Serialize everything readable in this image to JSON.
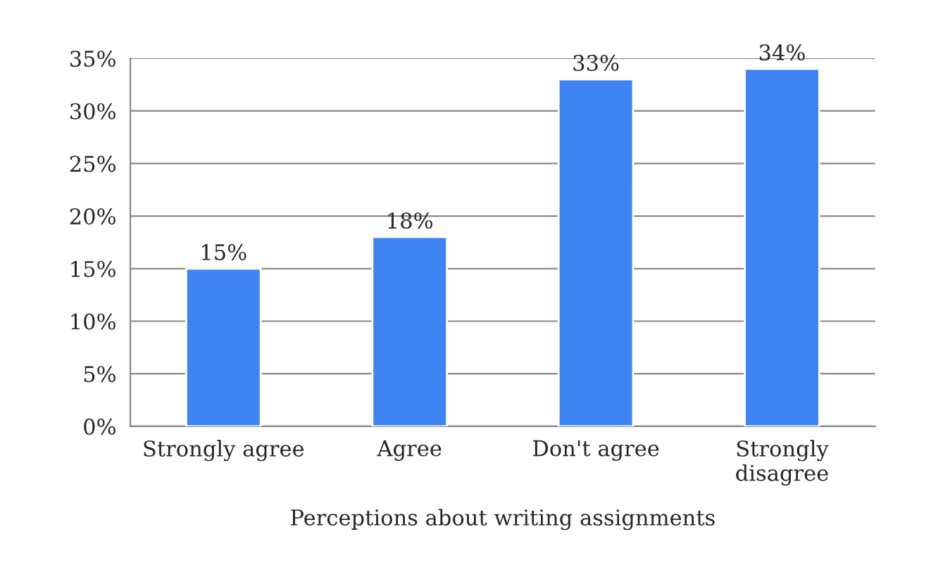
{
  "chart_data": {
    "type": "bar",
    "xlabel": "Perceptions about writing assignments",
    "categories": [
      "Strongly agree",
      "Agree",
      "Don't agree",
      "Strongly disagree"
    ],
    "values": [
      15,
      18,
      33,
      34
    ],
    "value_labels": [
      "15%",
      "18%",
      "33%",
      "34%"
    ],
    "color": "#3f84f2",
    "ylim": [
      0,
      35
    ],
    "yticks": [
      {
        "value": 0,
        "label": "0%"
      },
      {
        "value": 5,
        "label": "5%"
      },
      {
        "value": 10,
        "label": "10%"
      },
      {
        "value": 15,
        "label": "15%"
      },
      {
        "value": 20,
        "label": "20%"
      },
      {
        "value": 25,
        "label": "25%"
      },
      {
        "value": 30,
        "label": "30%"
      },
      {
        "value": 35,
        "label": "35%"
      }
    ],
    "grid": "y"
  }
}
